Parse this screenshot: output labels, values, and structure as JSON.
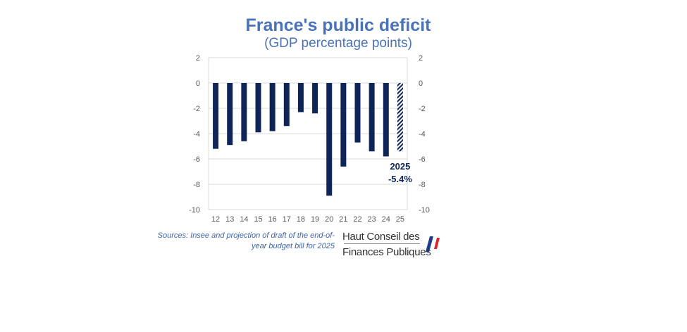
{
  "chart_data": {
    "type": "bar",
    "title": "France's public deficit",
    "subtitle": "(GDP percentage points)",
    "categories": [
      "12",
      "13",
      "14",
      "15",
      "16",
      "17",
      "18",
      "19",
      "20",
      "21",
      "22",
      "23",
      "24",
      "25"
    ],
    "values": [
      -5.2,
      -4.9,
      -4.6,
      -3.9,
      -3.8,
      -3.4,
      -2.3,
      -2.4,
      -8.9,
      -6.6,
      -4.7,
      -5.4,
      -5.8,
      -5.4
    ],
    "projected_categories": [
      "25"
    ],
    "ylim": [
      -10,
      2
    ],
    "yticks": [
      "2",
      "0",
      "-2",
      "-4",
      "-6",
      "-8",
      "-10"
    ],
    "yaxis": "both",
    "grid": true,
    "bar_color": "#0f2557",
    "annotation": {
      "year": "2025",
      "value": "-5.4%"
    }
  },
  "footer": {
    "sources": "Sources: Insee and projection of draft of the end-of-year budget bill for 2025",
    "logo_line1": "Haut Conseil des",
    "logo_line2": "Finances Publiques",
    "logo_colors": [
      "#1f3a8a",
      "#d9262c"
    ]
  }
}
